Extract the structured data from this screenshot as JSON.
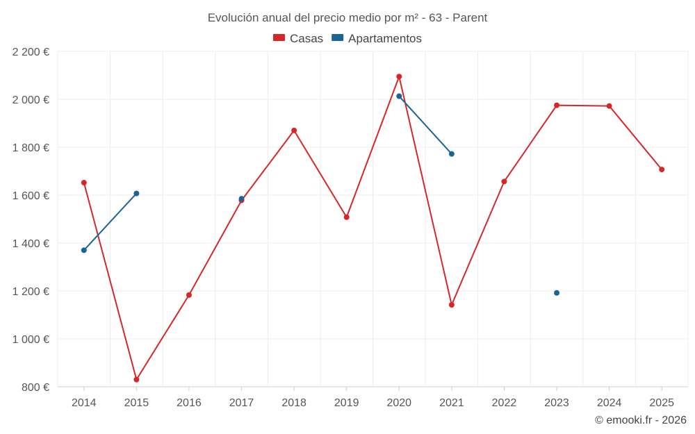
{
  "chart_data": {
    "type": "line",
    "title": "Evolución anual del precio medio por m² - 63 - Parent",
    "xlabel": "",
    "ylabel": "",
    "categories": [
      "2014",
      "2015",
      "2016",
      "2017",
      "2018",
      "2019",
      "2020",
      "2021",
      "2022",
      "2023",
      "2024",
      "2025"
    ],
    "ylim": [
      800,
      2200
    ],
    "yticks": [
      800,
      1000,
      1200,
      1400,
      1600,
      1800,
      2000,
      2200
    ],
    "ytick_labels": [
      "800 €",
      "1 000 €",
      "1 200 €",
      "1 400 €",
      "1 600 €",
      "1 800 €",
      "2 000 €",
      "2 200 €"
    ],
    "legend_position": "top-center",
    "grid": true,
    "series": [
      {
        "name": "Casas",
        "color": "#d62728",
        "values": [
          1652,
          830,
          1183,
          1578,
          1870,
          1508,
          2095,
          1142,
          1657,
          1975,
          1972,
          1707
        ]
      },
      {
        "name": "Apartamentos",
        "color": "#1a6496",
        "values": [
          1370,
          1607,
          null,
          1585,
          null,
          null,
          2013,
          1772,
          null,
          1192,
          null,
          null
        ]
      }
    ]
  },
  "credit": "© emooki.fr - 2026"
}
